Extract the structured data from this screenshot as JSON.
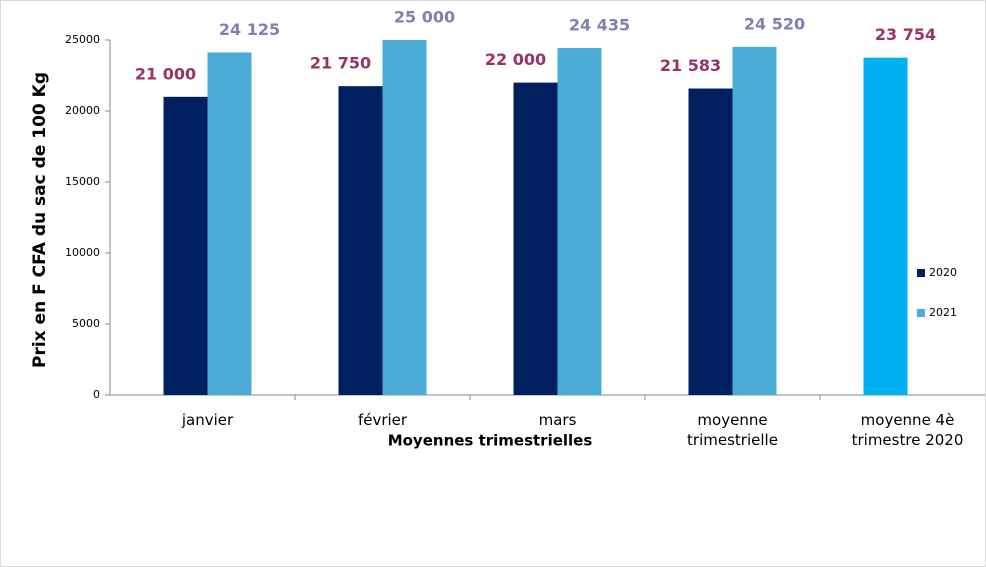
{
  "chart_data": {
    "type": "bar",
    "x_label": "Moyennes trimestrielles",
    "y_label": "Prix en F CFA du sac de 100 Kg",
    "categories": [
      "janvier",
      "février",
      "mars",
      "moyenne\ntrimestrielle",
      "moyenne 4è\ntrimestre 2020"
    ],
    "series": [
      {
        "name": "2020",
        "color": "#002060",
        "label_color": "#993366",
        "values": [
          21000,
          21750,
          22000,
          21583,
          null
        ],
        "value_labels": [
          "21 000",
          "21 750",
          "22 000",
          "21 583",
          null
        ]
      },
      {
        "name": "2021",
        "color": "#4bacd6",
        "label_color": "#7f7fb2",
        "values": [
          24125,
          25000,
          24435,
          24520,
          null
        ],
        "value_labels": [
          "24 125",
          "25 000",
          "24 435",
          "24 520",
          null
        ]
      },
      {
        "color": "#00b0f0",
        "label_color": "#993366",
        "values": [
          null,
          null,
          null,
          null,
          23754
        ],
        "value_labels": [
          null,
          null,
          null,
          null,
          "23 754"
        ]
      }
    ],
    "ylim": [
      0,
      25000
    ],
    "yticks": [
      0,
      5000,
      10000,
      15000,
      20000,
      25000
    ],
    "legend": "right"
  }
}
